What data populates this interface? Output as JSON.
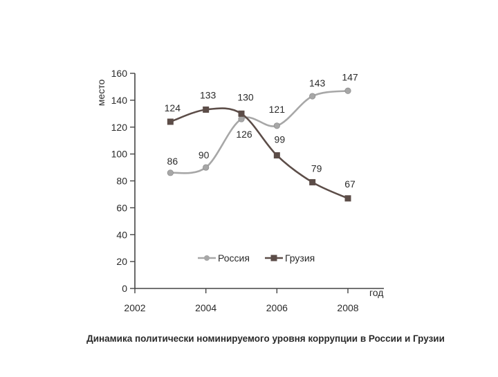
{
  "chart_data": {
    "type": "line",
    "title": "",
    "caption": "Динамика политически номинируемого уровня коррупции в России и Грузии",
    "xlabel": "год",
    "ylabel": "место",
    "x_ticks": [
      "2002",
      "2004",
      "2006",
      "2008"
    ],
    "xlim": [
      2002,
      2009
    ],
    "y_ticks": [
      "0",
      "20",
      "40",
      "60",
      "80",
      "100",
      "120",
      "140",
      "160"
    ],
    "ylim": [
      0,
      160
    ],
    "grid": false,
    "legend_position": "bottom-center",
    "x": [
      2003,
      2004,
      2005,
      2006,
      2007,
      2008
    ],
    "series": [
      {
        "name": "Россия",
        "marker": "circle",
        "color": "#a7a7a7",
        "values": [
          86,
          90,
          126,
          121,
          143,
          147
        ],
        "labels": [
          "86",
          "90",
          "126",
          "121",
          "143",
          "147"
        ]
      },
      {
        "name": "Грузия",
        "marker": "square",
        "color": "#5c4d48",
        "values": [
          124,
          133,
          130,
          99,
          79,
          67
        ],
        "labels": [
          "124",
          "133",
          "130",
          "99",
          "79",
          "67"
        ]
      }
    ]
  }
}
